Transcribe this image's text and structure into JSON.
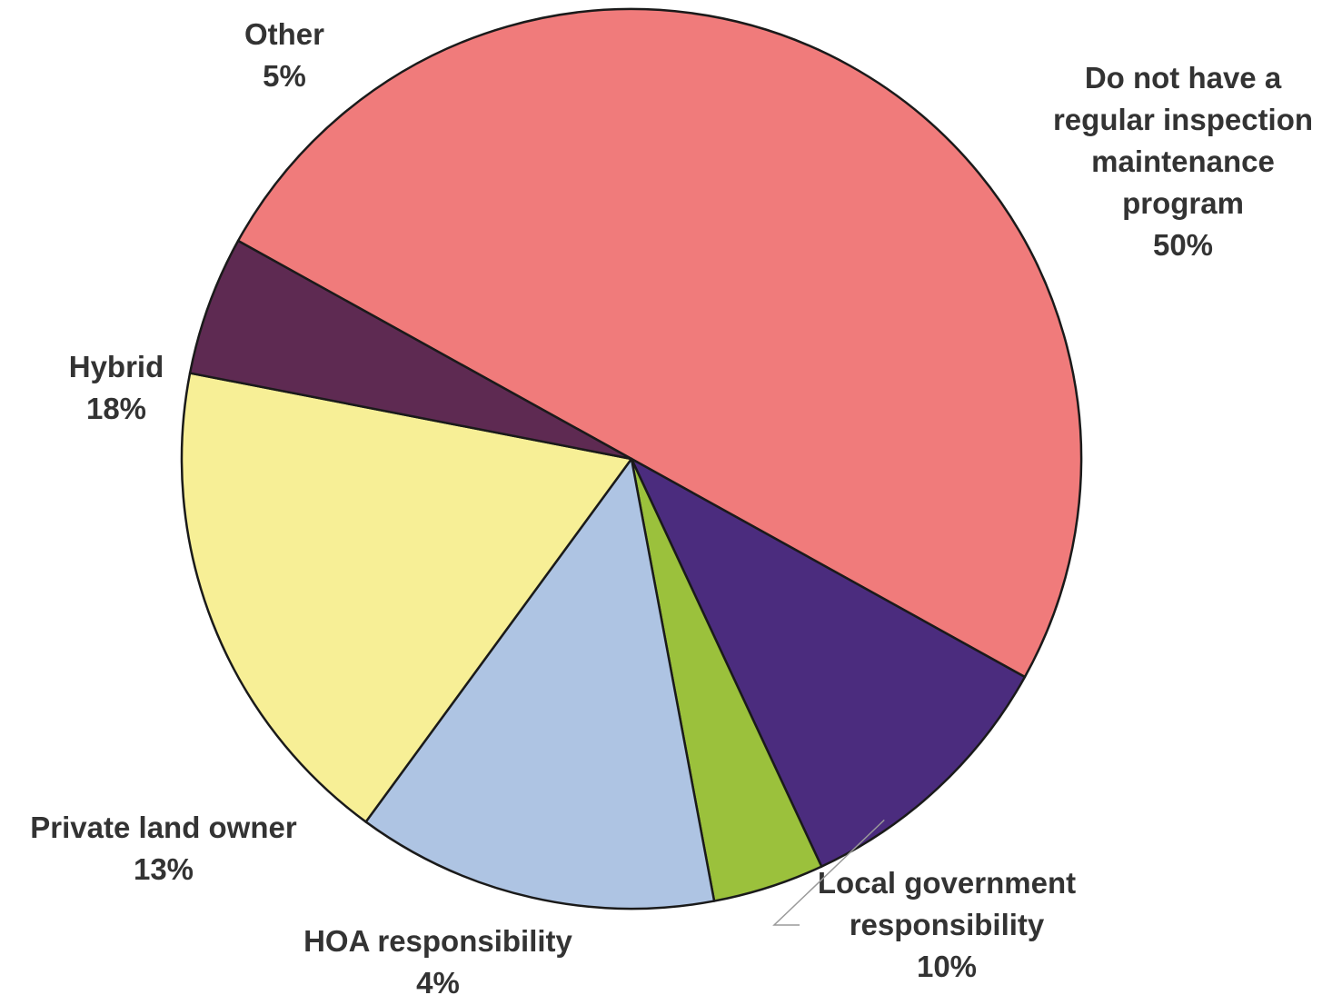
{
  "chart_data": {
    "type": "pie",
    "start_angle_deg": -61,
    "direction": "clockwise",
    "slices": [
      {
        "label_lines": [
          "Do not have a",
          "regular inspection",
          "maintenance",
          "program"
        ],
        "value": 50,
        "value_label": "50%",
        "color": "#f07b7b"
      },
      {
        "label_lines": [
          "Local government",
          "responsibility"
        ],
        "value": 10,
        "value_label": "10%",
        "color": "#4b2c7e"
      },
      {
        "label_lines": [
          "HOA responsibility"
        ],
        "value": 4,
        "value_label": "4%",
        "color": "#9bc13c"
      },
      {
        "label_lines": [
          "Private land owner"
        ],
        "value": 13,
        "value_label": "13%",
        "color": "#aec4e3"
      },
      {
        "label_lines": [
          "Hybrid"
        ],
        "value": 18,
        "value_label": "18%",
        "color": "#f7ef96"
      },
      {
        "label_lines": [
          "Other"
        ],
        "value": 5,
        "value_label": "5%",
        "color": "#5e2a52"
      }
    ]
  }
}
